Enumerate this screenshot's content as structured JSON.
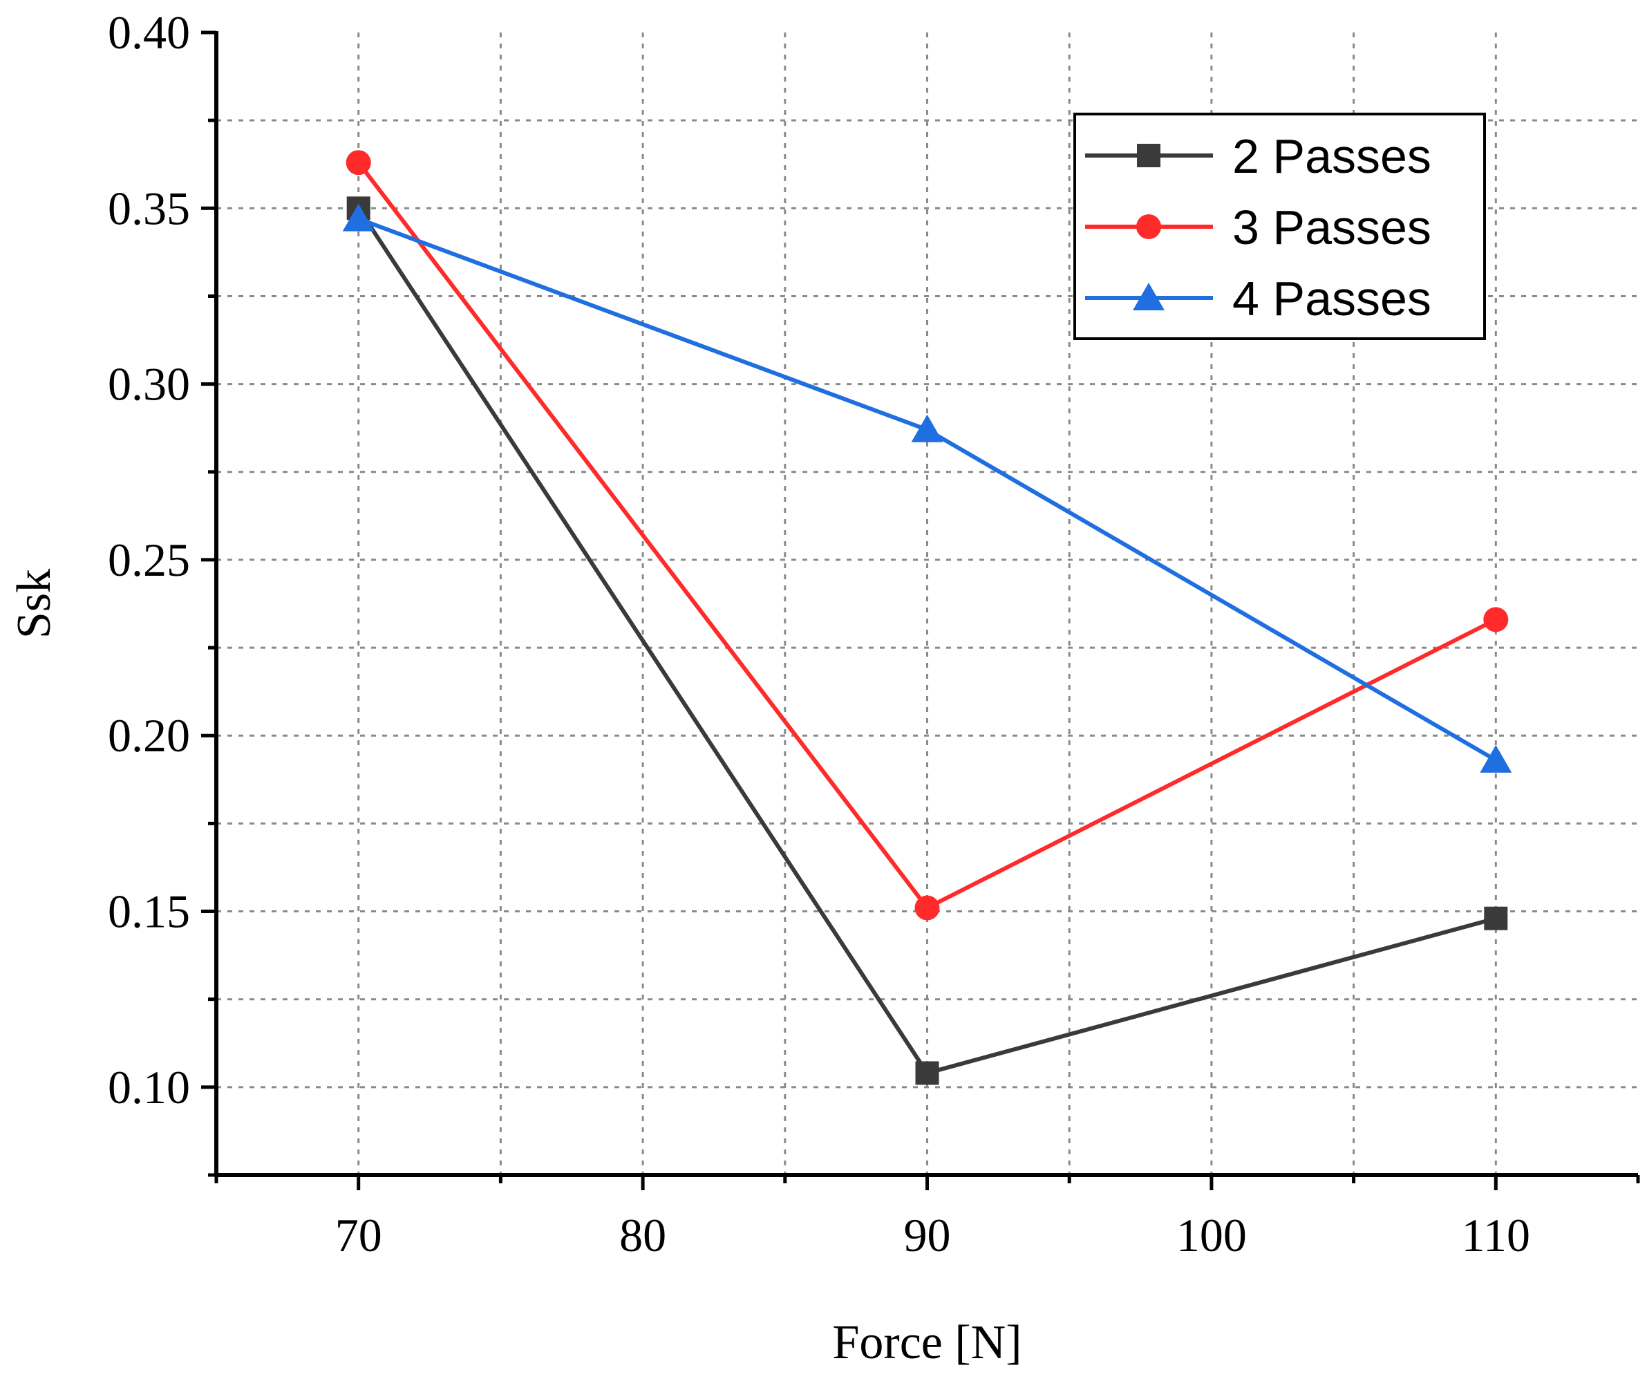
{
  "chart_data": {
    "type": "line",
    "title": "",
    "xlabel": "Force [N]",
    "ylabel": "Ssk",
    "x": [
      70,
      90,
      110
    ],
    "xlim": [
      65,
      115
    ],
    "ylim": [
      0.075,
      0.4
    ],
    "xticks": [
      70,
      80,
      90,
      100,
      110
    ],
    "xtick_labels": [
      "70",
      "80",
      "90",
      "100",
      "110"
    ],
    "yticks": [
      0.1,
      0.15,
      0.2,
      0.25,
      0.3,
      0.35,
      0.4
    ],
    "ytick_labels": [
      "0.10",
      "0.15",
      "0.20",
      "0.25",
      "0.30",
      "0.35",
      "0.40"
    ],
    "grid": true,
    "legend_position": "top-right",
    "series": [
      {
        "name": "2 Passes",
        "values": [
          0.35,
          0.104,
          0.148
        ],
        "color": "#3a3a3a",
        "marker": "square"
      },
      {
        "name": "3 Passes",
        "values": [
          0.363,
          0.151,
          0.233
        ],
        "color": "#ff2a2a",
        "marker": "circle"
      },
      {
        "name": "4 Passes",
        "values": [
          0.347,
          0.287,
          0.193
        ],
        "color": "#1f6fe0",
        "marker": "triangle"
      }
    ]
  }
}
